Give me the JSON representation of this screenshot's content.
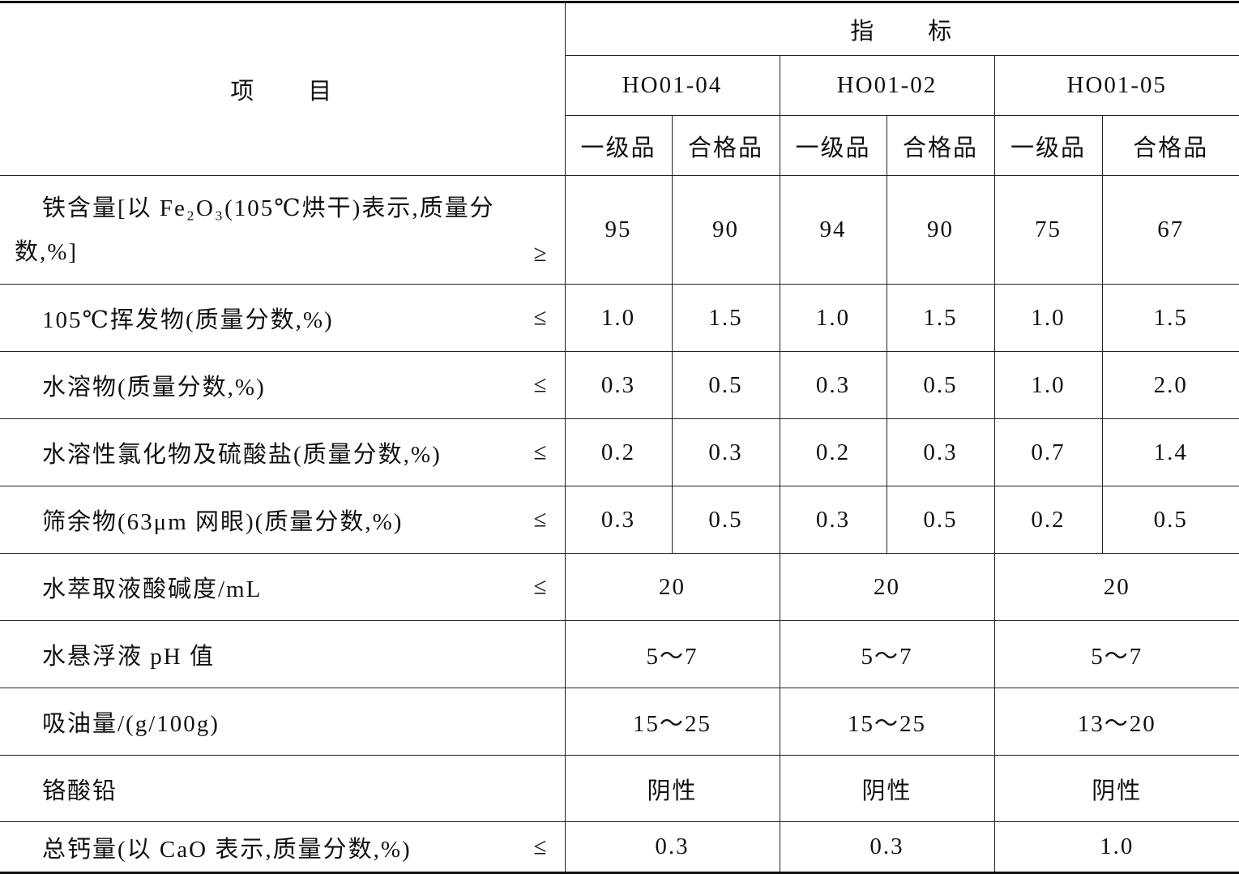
{
  "header": {
    "item": "项　　目",
    "indicator": "指　　标",
    "models": [
      "HO01-04",
      "HO01-02",
      "HO01-05"
    ],
    "grades": [
      "一级品",
      "合格品",
      "一级品",
      "合格品",
      "一级品",
      "合格品"
    ]
  },
  "rows": [
    {
      "label": "铁含量[以 Fe₂O₃(105℃烘干)表示,质量分数,%]",
      "sym": "≥",
      "values": [
        "95",
        "90",
        "94",
        "90",
        "75",
        "67"
      ]
    },
    {
      "label": "105℃挥发物(质量分数,%)",
      "sym": "≤",
      "values": [
        "1.0",
        "1.5",
        "1.0",
        "1.5",
        "1.0",
        "1.5"
      ]
    },
    {
      "label": "水溶物(质量分数,%)",
      "sym": "≤",
      "values": [
        "0.3",
        "0.5",
        "0.3",
        "0.5",
        "1.0",
        "2.0"
      ]
    },
    {
      "label": "水溶性氯化物及硫酸盐(质量分数,%)",
      "sym": "≤",
      "values": [
        "0.2",
        "0.3",
        "0.2",
        "0.3",
        "0.7",
        "1.4"
      ]
    },
    {
      "label": "筛余物(63μm 网眼)(质量分数,%)",
      "sym": "≤",
      "values": [
        "0.3",
        "0.5",
        "0.3",
        "0.5",
        "0.2",
        "0.5"
      ]
    },
    {
      "label": "水萃取液酸碱度/mL",
      "sym": "≤",
      "values": [
        "20",
        "20",
        "20"
      ]
    },
    {
      "label": "水悬浮液 pH 值",
      "sym": "",
      "values": [
        "5～7",
        "5～7",
        "5～7"
      ]
    },
    {
      "label": "吸油量/(g/100g)",
      "sym": "",
      "values": [
        "15～25",
        "15～25",
        "13～20"
      ]
    },
    {
      "label": "铬酸铅",
      "sym": "",
      "values": [
        "阴性",
        "阴性",
        "阴性"
      ]
    },
    {
      "label": "总钙量(以 CaO 表示,质量分数,%)",
      "sym": "≤",
      "values": [
        "0.3",
        "0.3",
        "1.0"
      ]
    }
  ]
}
